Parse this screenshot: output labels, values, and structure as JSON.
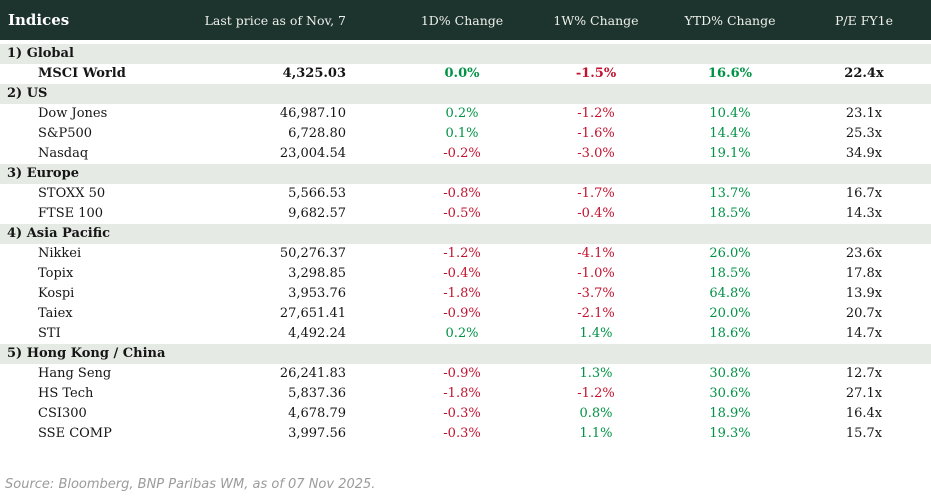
{
  "colors": {
    "header-bg": "#1d332d",
    "header-text": "#eef0ea",
    "section-bg": "#e6eae5",
    "pos": "#009245",
    "neg": "#c3122e",
    "text": "#151515",
    "muted": "#9b9b9b"
  },
  "footer": {
    "source": "Source: Bloomberg, BNP Paribas WM, as of 07 Nov 2025."
  },
  "chart_data": {
    "type": "table",
    "title": "Indices",
    "columns": [
      "Indices",
      "Last price as of Nov, 7",
      "1D% Change",
      "1W% Change",
      "YTD% Change",
      "P/E FY1e"
    ],
    "sections": [
      {
        "label": "1) Global",
        "rows": [
          {
            "bold": true,
            "cells": [
              "MSCI World",
              "4,325.03",
              "0.0%",
              "-1.5%",
              "16.6%",
              "22.4x"
            ]
          }
        ]
      },
      {
        "label": "2) US",
        "rows": [
          {
            "cells": [
              "Dow Jones",
              "46,987.10",
              "0.2%",
              "-1.2%",
              "10.4%",
              "23.1x"
            ]
          },
          {
            "cells": [
              "S&P500",
              "6,728.80",
              "0.1%",
              "-1.6%",
              "14.4%",
              "25.3x"
            ]
          },
          {
            "cells": [
              "Nasdaq",
              "23,004.54",
              "-0.2%",
              "-3.0%",
              "19.1%",
              "34.9x"
            ]
          }
        ]
      },
      {
        "label": "3) Europe",
        "rows": [
          {
            "cells": [
              "STOXX 50",
              "5,566.53",
              "-0.8%",
              "-1.7%",
              "13.7%",
              "16.7x"
            ]
          },
          {
            "cells": [
              "FTSE 100",
              "9,682.57",
              "-0.5%",
              "-0.4%",
              "18.5%",
              "14.3x"
            ]
          }
        ]
      },
      {
        "label": "4) Asia Pacific",
        "rows": [
          {
            "cells": [
              "Nikkei",
              "50,276.37",
              "-1.2%",
              "-4.1%",
              "26.0%",
              "23.6x"
            ]
          },
          {
            "cells": [
              "Topix",
              "3,298.85",
              "-0.4%",
              "-1.0%",
              "18.5%",
              "17.8x"
            ]
          },
          {
            "cells": [
              "Kospi",
              "3,953.76",
              "-1.8%",
              "-3.7%",
              "64.8%",
              "13.9x"
            ]
          },
          {
            "cells": [
              "Taiex",
              "27,651.41",
              "-0.9%",
              "-2.1%",
              "20.0%",
              "20.7x"
            ]
          },
          {
            "cells": [
              "STI",
              "4,492.24",
              "0.2%",
              "1.4%",
              "18.6%",
              "14.7x"
            ]
          }
        ]
      },
      {
        "label": "5) Hong Kong / China",
        "rows": [
          {
            "cells": [
              "Hang Seng",
              "26,241.83",
              "-0.9%",
              "1.3%",
              "30.8%",
              "12.7x"
            ]
          },
          {
            "cells": [
              "HS Tech",
              "5,837.36",
              "-1.8%",
              "-1.2%",
              "30.6%",
              "27.1x"
            ]
          },
          {
            "cells": [
              "CSI300",
              "4,678.79",
              "-0.3%",
              "0.8%",
              "18.9%",
              "16.4x"
            ]
          },
          {
            "cells": [
              "SSE COMP",
              "3,997.56",
              "-0.3%",
              "1.1%",
              "19.3%",
              "15.7x"
            ]
          }
        ]
      }
    ]
  }
}
